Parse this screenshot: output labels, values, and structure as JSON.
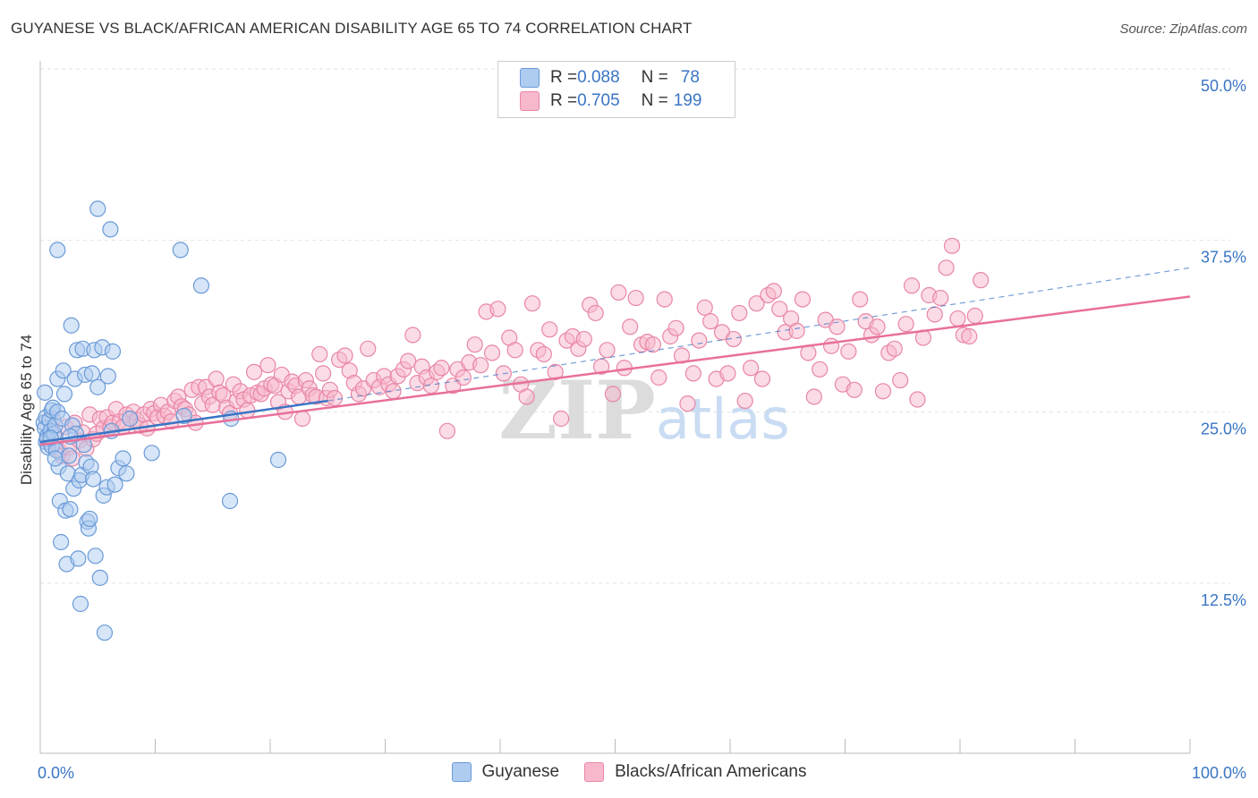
{
  "title": "GUYANESE VS BLACK/AFRICAN AMERICAN DISABILITY AGE 65 TO 74 CORRELATION CHART",
  "source": "Source: ZipAtlas.com",
  "watermark": "ZIPatlas",
  "legend": {
    "rows": [
      {
        "r_label": "R = ",
        "r_value": "0.088",
        "n_label": "N = ",
        "n_value": "78"
      },
      {
        "r_label": "R = ",
        "r_value": "0.705",
        "n_label": "N = ",
        "n_value": "199"
      }
    ]
  },
  "colors": {
    "guyanese_fill": "#aecbf0",
    "guyanese_stroke": "#6a9ad8",
    "guyanese_line": "#3a75c4",
    "black_fill": "#f7b8cb",
    "black_stroke": "#e886a6",
    "black_line": "#e8709a",
    "axis_label": "#3a75c4"
  },
  "chart_data": {
    "type": "scatter",
    "title": "GUYANESE VS BLACK/AFRICAN AMERICAN DISABILITY AGE 65 TO 74 CORRELATION CHART",
    "xlabel": "",
    "ylabel": "Disability Age 65 to 74",
    "xlim": [
      0,
      100
    ],
    "ylim": [
      0,
      52
    ],
    "x_ticks": [
      "0.0%",
      "100.0%"
    ],
    "y_ticks": [
      "12.5%",
      "25.0%",
      "37.5%",
      "50.0%"
    ],
    "y_tick_values": [
      12.5,
      25.0,
      37.5,
      50.0
    ],
    "grid": true,
    "legend_position": "top-center",
    "series": [
      {
        "name": "Guyanese",
        "r": 0.088,
        "n": 78,
        "trend": {
          "x": [
            0,
            25
          ],
          "y": [
            22.8,
            25.8
          ],
          "dashed_to": [
            100,
            35.5
          ]
        },
        "points": [
          [
            0.3,
            24.2
          ],
          [
            0.4,
            23.8
          ],
          [
            0.5,
            24.6
          ],
          [
            0.5,
            22.8
          ],
          [
            0.6,
            23.2
          ],
          [
            0.6,
            23.0
          ],
          [
            0.7,
            22.4
          ],
          [
            0.8,
            24.4
          ],
          [
            0.9,
            23.6
          ],
          [
            1.0,
            25.1
          ],
          [
            1.0,
            22.5
          ],
          [
            1.1,
            25.3
          ],
          [
            1.2,
            23.4
          ],
          [
            1.3,
            24.0
          ],
          [
            1.4,
            22.2
          ],
          [
            1.5,
            25.0
          ],
          [
            1.5,
            27.4
          ],
          [
            1.6,
            21.0
          ],
          [
            1.7,
            18.5
          ],
          [
            1.8,
            15.5
          ],
          [
            1.9,
            24.5
          ],
          [
            2.0,
            28.0
          ],
          [
            2.1,
            26.3
          ],
          [
            2.2,
            17.8
          ],
          [
            2.3,
            13.9
          ],
          [
            2.4,
            20.5
          ],
          [
            2.5,
            21.8
          ],
          [
            2.6,
            17.9
          ],
          [
            2.7,
            31.3
          ],
          [
            2.8,
            24.0
          ],
          [
            2.9,
            19.4
          ],
          [
            3.0,
            27.4
          ],
          [
            3.1,
            23.4
          ],
          [
            3.2,
            29.5
          ],
          [
            3.3,
            14.3
          ],
          [
            3.4,
            20.0
          ],
          [
            3.5,
            11.0
          ],
          [
            3.6,
            20.4
          ],
          [
            3.7,
            29.6
          ],
          [
            3.8,
            22.6
          ],
          [
            3.9,
            27.7
          ],
          [
            4.0,
            21.3
          ],
          [
            4.1,
            17.0
          ],
          [
            4.2,
            16.5
          ],
          [
            4.3,
            17.2
          ],
          [
            4.4,
            21.0
          ],
          [
            4.5,
            27.8
          ],
          [
            4.6,
            20.1
          ],
          [
            4.7,
            29.5
          ],
          [
            4.8,
            14.5
          ],
          [
            5.0,
            26.8
          ],
          [
            5.0,
            39.8
          ],
          [
            5.2,
            12.9
          ],
          [
            5.4,
            29.7
          ],
          [
            5.5,
            18.9
          ],
          [
            5.6,
            8.9
          ],
          [
            5.8,
            19.5
          ],
          [
            5.9,
            27.6
          ],
          [
            6.1,
            38.3
          ],
          [
            6.2,
            23.6
          ],
          [
            6.3,
            29.4
          ],
          [
            6.5,
            19.7
          ],
          [
            6.8,
            20.9
          ],
          [
            7.2,
            21.6
          ],
          [
            7.5,
            20.5
          ],
          [
            7.8,
            24.5
          ],
          [
            9.7,
            22.0
          ],
          [
            12.2,
            36.8
          ],
          [
            12.5,
            24.7
          ],
          [
            14.0,
            34.2
          ],
          [
            16.6,
            24.5
          ],
          [
            16.5,
            18.5
          ],
          [
            20.7,
            21.5
          ],
          [
            1.5,
            36.8
          ],
          [
            0.4,
            26.4
          ],
          [
            0.9,
            23.1
          ],
          [
            1.3,
            21.6
          ],
          [
            2.6,
            23.2
          ]
        ]
      },
      {
        "name": "Blacks/African Americans",
        "r": 0.705,
        "n": 199,
        "trend": {
          "x": [
            0,
            100
          ],
          "y": [
            22.6,
            33.4
          ]
        },
        "points": [
          [
            0.8,
            22.8
          ],
          [
            1.1,
            24.5
          ],
          [
            1.3,
            23.2
          ],
          [
            1.6,
            22.2
          ],
          [
            1.9,
            21.8
          ],
          [
            2.2,
            23.9
          ],
          [
            2.5,
            22.4
          ],
          [
            2.8,
            21.6
          ],
          [
            3.0,
            24.2
          ],
          [
            3.4,
            22.9
          ],
          [
            3.7,
            23.5
          ],
          [
            4.0,
            22.3
          ],
          [
            4.3,
            24.8
          ],
          [
            4.6,
            23.0
          ],
          [
            4.9,
            23.4
          ],
          [
            5.2,
            24.5
          ],
          [
            5.5,
            23.8
          ],
          [
            5.8,
            24.6
          ],
          [
            6.1,
            23.9
          ],
          [
            6.3,
            24.2
          ],
          [
            6.6,
            25.2
          ],
          [
            6.9,
            24.3
          ],
          [
            7.2,
            23.9
          ],
          [
            7.5,
            24.8
          ],
          [
            7.8,
            24.5
          ],
          [
            8.1,
            25.0
          ],
          [
            8.4,
            24.4
          ],
          [
            8.7,
            24.0
          ],
          [
            9.0,
            24.8
          ],
          [
            9.3,
            23.8
          ],
          [
            9.6,
            25.2
          ],
          [
            9.9,
            24.9
          ],
          [
            10.2,
            24.6
          ],
          [
            10.5,
            25.5
          ],
          [
            10.8,
            24.7
          ],
          [
            11.1,
            25.0
          ],
          [
            11.4,
            24.3
          ],
          [
            11.7,
            25.8
          ],
          [
            12.0,
            26.1
          ],
          [
            12.3,
            25.4
          ],
          [
            12.6,
            25.2
          ],
          [
            12.9,
            24.8
          ],
          [
            13.2,
            26.6
          ],
          [
            13.5,
            24.2
          ],
          [
            13.8,
            26.8
          ],
          [
            14.1,
            25.6
          ],
          [
            14.4,
            26.8
          ],
          [
            14.7,
            26.1
          ],
          [
            15.0,
            25.5
          ],
          [
            15.3,
            27.4
          ],
          [
            15.6,
            26.4
          ],
          [
            15.9,
            26.2
          ],
          [
            16.2,
            25.3
          ],
          [
            16.5,
            24.9
          ],
          [
            16.8,
            27.0
          ],
          [
            17.1,
            25.8
          ],
          [
            17.4,
            26.5
          ],
          [
            17.7,
            25.9
          ],
          [
            18.0,
            25.1
          ],
          [
            18.3,
            26.2
          ],
          [
            18.6,
            27.9
          ],
          [
            18.9,
            26.4
          ],
          [
            19.2,
            26.3
          ],
          [
            19.5,
            26.7
          ],
          [
            19.8,
            28.4
          ],
          [
            20.1,
            27.0
          ],
          [
            20.4,
            26.9
          ],
          [
            20.7,
            25.7
          ],
          [
            21.0,
            27.7
          ],
          [
            21.3,
            25.0
          ],
          [
            21.6,
            26.5
          ],
          [
            21.9,
            27.2
          ],
          [
            22.2,
            26.9
          ],
          [
            22.5,
            26.1
          ],
          [
            22.8,
            24.5
          ],
          [
            23.1,
            27.3
          ],
          [
            23.4,
            26.7
          ],
          [
            23.7,
            26.2
          ],
          [
            24.0,
            26.1
          ],
          [
            24.3,
            29.2
          ],
          [
            24.6,
            27.8
          ],
          [
            24.9,
            26.0
          ],
          [
            25.2,
            26.6
          ],
          [
            25.6,
            26.0
          ],
          [
            26.0,
            28.8
          ],
          [
            26.5,
            29.1
          ],
          [
            26.9,
            28.0
          ],
          [
            27.3,
            27.1
          ],
          [
            27.7,
            26.3
          ],
          [
            28.1,
            26.7
          ],
          [
            28.5,
            29.6
          ],
          [
            29.0,
            27.3
          ],
          [
            29.5,
            26.8
          ],
          [
            29.9,
            27.6
          ],
          [
            30.3,
            27.0
          ],
          [
            30.7,
            26.5
          ],
          [
            31.1,
            27.6
          ],
          [
            31.6,
            28.1
          ],
          [
            32.0,
            28.7
          ],
          [
            32.4,
            30.6
          ],
          [
            32.8,
            27.1
          ],
          [
            33.2,
            28.3
          ],
          [
            33.6,
            27.5
          ],
          [
            34.0,
            26.9
          ],
          [
            34.5,
            27.9
          ],
          [
            34.9,
            28.2
          ],
          [
            35.4,
            23.6
          ],
          [
            35.9,
            26.9
          ],
          [
            36.3,
            28.1
          ],
          [
            36.8,
            27.5
          ],
          [
            37.3,
            28.6
          ],
          [
            37.8,
            29.9
          ],
          [
            38.3,
            28.4
          ],
          [
            38.8,
            32.3
          ],
          [
            39.3,
            29.3
          ],
          [
            39.8,
            32.5
          ],
          [
            40.3,
            27.8
          ],
          [
            40.8,
            30.4
          ],
          [
            41.3,
            29.5
          ],
          [
            41.8,
            27.0
          ],
          [
            42.3,
            26.1
          ],
          [
            42.8,
            32.9
          ],
          [
            43.3,
            29.5
          ],
          [
            43.8,
            29.2
          ],
          [
            44.3,
            31.0
          ],
          [
            44.8,
            27.9
          ],
          [
            45.3,
            24.5
          ],
          [
            45.8,
            30.2
          ],
          [
            46.3,
            30.5
          ],
          [
            46.8,
            29.6
          ],
          [
            47.3,
            30.3
          ],
          [
            47.8,
            32.8
          ],
          [
            48.3,
            32.2
          ],
          [
            48.8,
            28.3
          ],
          [
            49.3,
            29.5
          ],
          [
            49.8,
            26.3
          ],
          [
            50.3,
            33.7
          ],
          [
            50.8,
            28.2
          ],
          [
            51.3,
            31.2
          ],
          [
            51.8,
            33.3
          ],
          [
            52.3,
            29.9
          ],
          [
            52.8,
            30.1
          ],
          [
            53.3,
            29.9
          ],
          [
            53.8,
            27.5
          ],
          [
            54.3,
            33.2
          ],
          [
            54.8,
            30.5
          ],
          [
            55.3,
            31.1
          ],
          [
            55.8,
            29.1
          ],
          [
            56.3,
            25.6
          ],
          [
            56.8,
            27.8
          ],
          [
            57.3,
            30.2
          ],
          [
            57.8,
            32.6
          ],
          [
            58.3,
            31.6
          ],
          [
            58.8,
            27.4
          ],
          [
            59.3,
            30.8
          ],
          [
            59.8,
            27.8
          ],
          [
            60.3,
            30.3
          ],
          [
            60.8,
            32.2
          ],
          [
            61.3,
            25.8
          ],
          [
            61.8,
            28.2
          ],
          [
            62.3,
            32.9
          ],
          [
            62.8,
            27.4
          ],
          [
            63.3,
            33.5
          ],
          [
            63.8,
            33.8
          ],
          [
            64.3,
            32.5
          ],
          [
            64.8,
            30.8
          ],
          [
            65.3,
            31.8
          ],
          [
            65.8,
            30.9
          ],
          [
            66.3,
            33.2
          ],
          [
            66.8,
            29.3
          ],
          [
            67.3,
            26.1
          ],
          [
            67.8,
            28.1
          ],
          [
            68.3,
            31.7
          ],
          [
            68.8,
            29.8
          ],
          [
            69.3,
            31.2
          ],
          [
            69.8,
            27.0
          ],
          [
            70.3,
            29.4
          ],
          [
            70.8,
            26.6
          ],
          [
            71.3,
            33.2
          ],
          [
            71.8,
            31.6
          ],
          [
            72.3,
            30.6
          ],
          [
            72.8,
            31.2
          ],
          [
            73.3,
            26.5
          ],
          [
            73.8,
            29.3
          ],
          [
            74.3,
            29.6
          ],
          [
            74.8,
            27.3
          ],
          [
            75.3,
            31.4
          ],
          [
            75.8,
            34.2
          ],
          [
            76.3,
            25.9
          ],
          [
            76.8,
            30.4
          ],
          [
            77.3,
            33.5
          ],
          [
            77.8,
            32.1
          ],
          [
            78.3,
            33.3
          ],
          [
            78.8,
            35.5
          ],
          [
            79.3,
            37.1
          ],
          [
            79.8,
            31.8
          ],
          [
            80.3,
            30.6
          ],
          [
            80.8,
            30.5
          ],
          [
            81.3,
            32.0
          ],
          [
            81.8,
            34.6
          ]
        ]
      }
    ]
  }
}
